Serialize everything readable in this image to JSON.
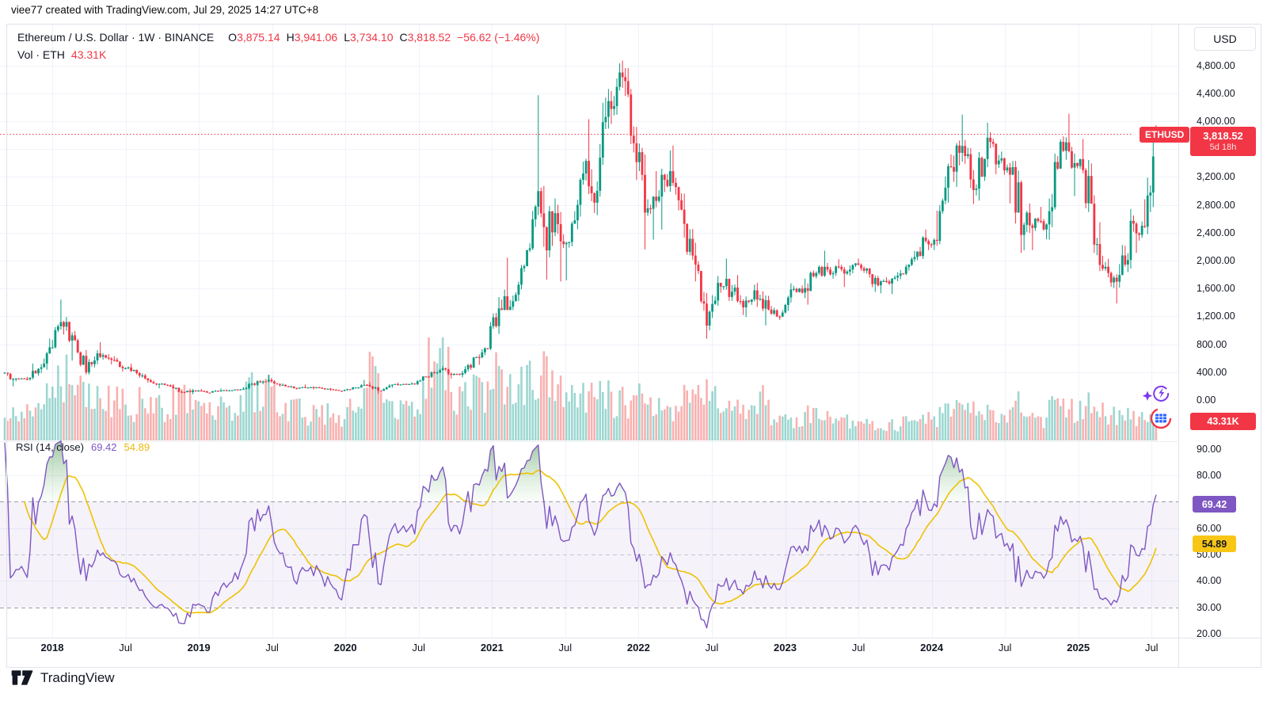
{
  "header": {
    "attribution": "viee77 created with TradingView.com, Jul 29, 2025 14:27 UTC+8"
  },
  "legend": {
    "symbol_title": "Ethereum / U.S. Dollar · 1W · BINANCE",
    "ohlc": {
      "o_label": "O",
      "o_value": "3,875.14",
      "h_label": "H",
      "h_value": "3,941.06",
      "l_label": "L",
      "l_value": "3,734.10",
      "c_label": "C",
      "c_value": "3,818.52",
      "change": "−56.62 (−1.46%)"
    },
    "volume_row": {
      "label": "Vol · ETH",
      "value": "43.31K"
    }
  },
  "price_axis": {
    "currency_button": "USD",
    "labels": [
      "4,800.00",
      "4,400.00",
      "4,000.00",
      "3,200.00",
      "2,800.00",
      "2,400.00",
      "2,000.00",
      "1,600.00",
      "1,200.00",
      "800.00",
      "400.00",
      "0.00"
    ],
    "last_price_badge": {
      "symbol": "ETHUSD",
      "price": "3,818.52",
      "countdown": "5d 18h"
    },
    "volume_badge": "43.31K"
  },
  "rsi_pane": {
    "legend": {
      "title": "RSI (14, close)",
      "value": "69.42",
      "ma_value": "54.89"
    },
    "axis_labels": [
      "90.00",
      "80.00",
      "60.00",
      "50.00",
      "40.00",
      "30.00",
      "20.00"
    ],
    "value_badge": "69.42",
    "ma_badge": "54.89"
  },
  "time_axis": {
    "labels": [
      {
        "text": "2018",
        "major": true
      },
      {
        "text": "Jul",
        "major": false
      },
      {
        "text": "2019",
        "major": true
      },
      {
        "text": "Jul",
        "major": false
      },
      {
        "text": "2020",
        "major": true
      },
      {
        "text": "Jul",
        "major": false
      },
      {
        "text": "2021",
        "major": true
      },
      {
        "text": "Jul",
        "major": false
      },
      {
        "text": "2022",
        "major": true
      },
      {
        "text": "Jul",
        "major": false
      },
      {
        "text": "2023",
        "major": true
      },
      {
        "text": "Jul",
        "major": false
      },
      {
        "text": "2024",
        "major": true
      },
      {
        "text": "Jul",
        "major": false
      },
      {
        "text": "2025",
        "major": true
      },
      {
        "text": "Jul",
        "major": false
      }
    ]
  },
  "footer": {
    "logo_text": "TradingView"
  },
  "colors": {
    "up": "#089981",
    "down": "#F23645",
    "volume_up": "rgba(38,166,154,0.45)",
    "volume_down": "rgba(239,83,80,0.45)",
    "rsi_line": "#7E57C2",
    "rsi_ma_line": "#EFC200",
    "rsi_band_fill": "rgba(126,87,194,0.08)",
    "overbought_fill": "#2E7D32",
    "grid": "#F0F3FA",
    "axis_text": "#131722",
    "badge_red": "#F23645",
    "badge_purple": "#7E57C2",
    "badge_yellow": "#F8C617",
    "last_price_line": "#F23645"
  },
  "chart_data": {
    "type": "candlestick",
    "symbol": "ETHUSD",
    "exchange": "BINANCE",
    "interval": "1W",
    "currency": "USD",
    "last_price": 3818.52,
    "last_candle": {
      "open": 3875.14,
      "high": 3941.06,
      "low": 3734.1,
      "close": 3818.52,
      "change": -56.62,
      "change_pct": -1.46
    },
    "volume_display": "43.31K",
    "price_axis_range": [
      0,
      4800
    ],
    "rsi": {
      "period": 14,
      "source": "close",
      "value": 69.42,
      "ma_value": 54.89,
      "overbought": 70,
      "middle": 50,
      "oversold": 30,
      "axis_range": [
        20,
        90
      ],
      "legend_position": "top-left"
    },
    "monthly_ohlcv": {
      "columns": [
        "month",
        "open",
        "high",
        "low",
        "close",
        "volume_rel"
      ],
      "rows": [
        [
          "2017-09",
          387,
          395,
          195,
          303,
          0.25
        ],
        [
          "2017-10",
          303,
          315,
          268,
          305,
          0.22
        ],
        [
          "2017-11",
          305,
          522,
          280,
          447,
          0.3
        ],
        [
          "2017-12",
          447,
          881,
          385,
          756,
          0.45
        ],
        [
          "2018-01",
          756,
          1440,
          740,
          1118,
          0.6
        ],
        [
          "2018-02",
          1118,
          1190,
          565,
          856,
          0.65
        ],
        [
          "2018-03",
          856,
          880,
          365,
          396,
          0.5
        ],
        [
          "2018-04",
          396,
          715,
          365,
          670,
          0.52
        ],
        [
          "2018-05",
          670,
          830,
          510,
          577,
          0.45
        ],
        [
          "2018-06",
          577,
          630,
          405,
          455,
          0.42
        ],
        [
          "2018-07",
          455,
          520,
          403,
          433,
          0.34
        ],
        [
          "2018-08",
          433,
          436,
          248,
          283,
          0.42
        ],
        [
          "2018-09",
          283,
          305,
          167,
          233,
          0.4
        ],
        [
          "2018-10",
          233,
          240,
          185,
          197,
          0.26
        ],
        [
          "2018-11",
          197,
          222,
          102,
          113,
          0.42
        ],
        [
          "2018-12",
          113,
          160,
          82,
          133,
          0.45
        ],
        [
          "2019-01",
          133,
          161,
          103,
          107,
          0.32
        ],
        [
          "2019-02",
          107,
          166,
          102,
          137,
          0.34
        ],
        [
          "2019-03",
          137,
          148,
          125,
          141,
          0.3
        ],
        [
          "2019-04",
          141,
          186,
          138,
          162,
          0.38
        ],
        [
          "2019-05",
          162,
          282,
          150,
          268,
          0.52
        ],
        [
          "2019-06",
          268,
          363,
          226,
          290,
          0.5
        ],
        [
          "2019-07",
          290,
          319,
          192,
          218,
          0.44
        ],
        [
          "2019-08",
          218,
          238,
          163,
          172,
          0.33
        ],
        [
          "2019-09",
          172,
          224,
          152,
          180,
          0.32
        ],
        [
          "2019-10",
          180,
          199,
          151,
          183,
          0.28
        ],
        [
          "2019-11",
          183,
          192,
          132,
          154,
          0.28
        ],
        [
          "2019-12",
          154,
          158,
          116,
          130,
          0.26
        ],
        [
          "2020-01",
          130,
          188,
          126,
          180,
          0.34
        ],
        [
          "2020-02",
          180,
          289,
          180,
          217,
          0.4
        ],
        [
          "2020-03",
          217,
          253,
          88,
          133,
          0.8
        ],
        [
          "2020-04",
          133,
          227,
          131,
          206,
          0.46
        ],
        [
          "2020-05",
          206,
          248,
          176,
          231,
          0.4
        ],
        [
          "2020-06",
          231,
          254,
          216,
          226,
          0.32
        ],
        [
          "2020-07",
          226,
          342,
          216,
          336,
          0.46
        ],
        [
          "2020-08",
          336,
          447,
          313,
          429,
          1.0
        ],
        [
          "2020-09",
          429,
          489,
          308,
          360,
          0.85
        ],
        [
          "2020-10",
          360,
          421,
          325,
          387,
          0.5
        ],
        [
          "2020-11",
          387,
          623,
          368,
          616,
          0.56
        ],
        [
          "2020-12",
          616,
          758,
          505,
          737,
          0.52
        ],
        [
          "2021-01",
          737,
          1477,
          716,
          1315,
          0.72
        ],
        [
          "2021-02",
          1315,
          2042,
          1291,
          1418,
          0.62
        ],
        [
          "2021-03",
          1418,
          1944,
          1413,
          1919,
          0.56
        ],
        [
          "2021-04",
          1919,
          2798,
          1947,
          2773,
          0.6
        ],
        [
          "2021-05",
          2773,
          4372,
          1728,
          2707,
          0.76
        ],
        [
          "2021-06",
          2707,
          2891,
          1700,
          2275,
          0.6
        ],
        [
          "2021-07",
          2275,
          2560,
          1718,
          2530,
          0.46
        ],
        [
          "2021-08",
          2530,
          3460,
          2450,
          3430,
          0.5
        ],
        [
          "2021-09",
          3430,
          4028,
          2652,
          3001,
          0.5
        ],
        [
          "2021-10",
          3001,
          4460,
          2917,
          4288,
          0.46
        ],
        [
          "2021-11",
          4288,
          4868,
          3959,
          4631,
          0.42
        ],
        [
          "2021-12",
          4631,
          4760,
          3550,
          3683,
          0.4
        ],
        [
          "2022-01",
          3683,
          3917,
          2160,
          2688,
          0.48
        ],
        [
          "2022-02",
          2688,
          3283,
          2300,
          2919,
          0.34
        ],
        [
          "2022-03",
          2919,
          3580,
          2444,
          3283,
          0.32
        ],
        [
          "2022-04",
          3283,
          3650,
          2720,
          2730,
          0.3
        ],
        [
          "2022-05",
          2730,
          2960,
          1700,
          1942,
          0.46
        ],
        [
          "2022-06",
          1942,
          1990,
          880,
          1067,
          0.52
        ],
        [
          "2022-07",
          1067,
          1780,
          1000,
          1681,
          0.46
        ],
        [
          "2022-08",
          1681,
          2030,
          1421,
          1554,
          0.36
        ],
        [
          "2022-09",
          1554,
          1790,
          1220,
          1329,
          0.36
        ],
        [
          "2022-10",
          1329,
          1655,
          1190,
          1573,
          0.28
        ],
        [
          "2022-11",
          1573,
          1680,
          1070,
          1297,
          0.42
        ],
        [
          "2022-12",
          1297,
          1350,
          1150,
          1196,
          0.22
        ],
        [
          "2023-01",
          1196,
          1674,
          1190,
          1586,
          0.26
        ],
        [
          "2023-02",
          1586,
          1742,
          1461,
          1605,
          0.22
        ],
        [
          "2023-03",
          1605,
          1860,
          1368,
          1822,
          0.28
        ],
        [
          "2023-04",
          1822,
          2141,
          1765,
          1871,
          0.22
        ],
        [
          "2023-05",
          1871,
          2020,
          1740,
          1874,
          0.18
        ],
        [
          "2023-06",
          1874,
          1950,
          1620,
          1934,
          0.2
        ],
        [
          "2023-07",
          1934,
          2029,
          1825,
          1856,
          0.16
        ],
        [
          "2023-08",
          1856,
          1893,
          1550,
          1645,
          0.18
        ],
        [
          "2023-09",
          1645,
          1760,
          1531,
          1671,
          0.15
        ],
        [
          "2023-10",
          1671,
          1865,
          1520,
          1815,
          0.17
        ],
        [
          "2023-11",
          1815,
          2137,
          1790,
          2051,
          0.2
        ],
        [
          "2023-12",
          2051,
          2445,
          2005,
          2281,
          0.2
        ],
        [
          "2024-01",
          2281,
          2717,
          2150,
          2283,
          0.22
        ],
        [
          "2024-02",
          2283,
          3525,
          2235,
          3341,
          0.28
        ],
        [
          "2024-03",
          3341,
          4093,
          3056,
          3645,
          0.4
        ],
        [
          "2024-04",
          3645,
          3730,
          2810,
          3012,
          0.3
        ],
        [
          "2024-05",
          3012,
          3977,
          2860,
          3762,
          0.28
        ],
        [
          "2024-06",
          3762,
          3840,
          3240,
          3435,
          0.24
        ],
        [
          "2024-07",
          3435,
          3563,
          2820,
          3232,
          0.24
        ],
        [
          "2024-08",
          3232,
          3430,
          2111,
          2513,
          0.42
        ],
        [
          "2024-09",
          2513,
          2820,
          2150,
          2602,
          0.24
        ],
        [
          "2024-10",
          2602,
          2770,
          2306,
          2518,
          0.2
        ],
        [
          "2024-11",
          2518,
          3740,
          2300,
          3703,
          0.34
        ],
        [
          "2024-12",
          3703,
          4106,
          3316,
          3333,
          0.36
        ],
        [
          "2025-01",
          3333,
          3744,
          2924,
          3298,
          0.3
        ],
        [
          "2025-02",
          3298,
          3443,
          2077,
          2237,
          0.38
        ],
        [
          "2025-03",
          2237,
          2551,
          1760,
          1822,
          0.3
        ],
        [
          "2025-04",
          1822,
          1950,
          1385,
          1794,
          0.28
        ],
        [
          "2025-05",
          1794,
          2740,
          1790,
          2530,
          0.25
        ],
        [
          "2025-06",
          2530,
          2880,
          2111,
          2486,
          0.22
        ],
        [
          "2025-07",
          2486,
          3941,
          2380,
          3818.52,
          0.28
        ]
      ]
    }
  }
}
